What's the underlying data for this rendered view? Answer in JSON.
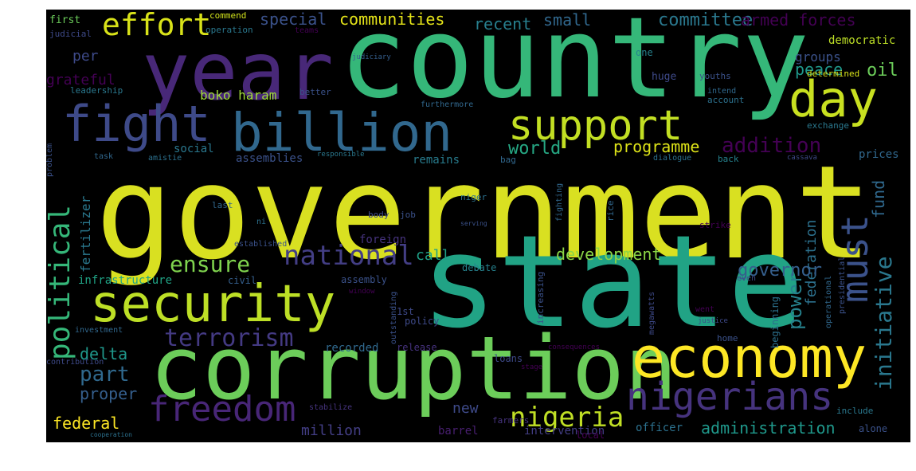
{
  "words": [
    {
      "text": "government",
      "color": "#d9e021"
    },
    {
      "text": "country",
      "color": "#35b779"
    },
    {
      "text": "state",
      "color": "#21a385"
    },
    {
      "text": "corruption",
      "color": "#6ccd5a"
    },
    {
      "text": "year",
      "color": "#482878"
    },
    {
      "text": "billion",
      "color": "#31688e"
    },
    {
      "text": "fight",
      "color": "#3e4a89"
    },
    {
      "text": "security",
      "color": "#bddf26"
    },
    {
      "text": "economy",
      "color": "#fde725"
    },
    {
      "text": "support",
      "color": "#c2df23"
    },
    {
      "text": "day",
      "color": "#c8e020"
    },
    {
      "text": "nigerians",
      "color": "#46337e"
    },
    {
      "text": "freedom",
      "color": "#482677"
    },
    {
      "text": "nigeria",
      "color": "#c0df25"
    },
    {
      "text": "effort",
      "color": "#d8e219"
    },
    {
      "text": "must",
      "color": "#3b528b"
    },
    {
      "text": "national",
      "color": "#433e85"
    },
    {
      "text": "terrorism",
      "color": "#443a83"
    },
    {
      "text": "ensure",
      "color": "#7fd34e"
    },
    {
      "text": "political",
      "color": "#35b779"
    },
    {
      "text": "power",
      "color": "#26828e"
    },
    {
      "text": "initiative",
      "color": "#2a788e"
    },
    {
      "text": "part",
      "color": "#30698e"
    },
    {
      "text": "addition",
      "color": "#440154"
    },
    {
      "text": "programme",
      "color": "#dde318"
    },
    {
      "text": "world",
      "color": "#26a884"
    },
    {
      "text": "federation",
      "color": "#2c718e"
    },
    {
      "text": "governor",
      "color": "#355f8d"
    },
    {
      "text": "development",
      "color": "#8bd646"
    },
    {
      "text": "communities",
      "color": "#e5e419"
    },
    {
      "text": "special",
      "color": "#3b528b"
    },
    {
      "text": "committee",
      "color": "#2a788e"
    },
    {
      "text": "armed forces",
      "color": "#440154"
    },
    {
      "text": "small",
      "color": "#31688e"
    },
    {
      "text": "recent",
      "color": "#277f8e"
    },
    {
      "text": "peace",
      "color": "#1f988b"
    },
    {
      "text": "oil",
      "color": "#6ccd5a"
    },
    {
      "text": "democratic",
      "color": "#bddf26"
    },
    {
      "text": "groups",
      "color": "#3b528b"
    },
    {
      "text": "grateful",
      "color": "#440154"
    },
    {
      "text": "per",
      "color": "#3e4a89"
    },
    {
      "text": "boko haram",
      "color": "#a0da39"
    },
    {
      "text": "administration",
      "color": "#1f988b"
    },
    {
      "text": "fund",
      "color": "#30698e"
    },
    {
      "text": "call",
      "color": "#1fa187"
    },
    {
      "text": "delta",
      "color": "#1f988b"
    },
    {
      "text": "fertilizer",
      "color": "#2a788e"
    },
    {
      "text": "proper",
      "color": "#355f8d"
    },
    {
      "text": "federal",
      "color": "#fde725"
    },
    {
      "text": "new",
      "color": "#3e4a89"
    },
    {
      "text": "million",
      "color": "#433e85"
    },
    {
      "text": "infrastructure",
      "color": "#20a486"
    },
    {
      "text": "assemblies",
      "color": "#3b528b"
    },
    {
      "text": "remains",
      "color": "#287c8e"
    },
    {
      "text": "social",
      "color": "#2a788e"
    },
    {
      "text": "prices",
      "color": "#31688e"
    },
    {
      "text": "officer",
      "color": "#2c718e"
    },
    {
      "text": "intervention",
      "color": "#433e85"
    },
    {
      "text": "barrel",
      "color": "#481f70"
    },
    {
      "text": "recorded",
      "color": "#30698e"
    },
    {
      "text": "release",
      "color": "#46327e"
    },
    {
      "text": "debate",
      "color": "#26828e"
    },
    {
      "text": "assembly",
      "color": "#3b528b"
    },
    {
      "text": "civil",
      "color": "#355f8d"
    },
    {
      "text": "investment",
      "color": "#31688e"
    },
    {
      "text": "contribution",
      "color": "#3e4a89"
    },
    {
      "text": "loans",
      "color": "#3e4a89"
    },
    {
      "text": "include",
      "color": "#2a788e"
    },
    {
      "text": "alone",
      "color": "#3b528b"
    },
    {
      "text": "local",
      "color": "#440154"
    },
    {
      "text": "farmers",
      "color": "#46337e"
    },
    {
      "text": "first",
      "color": "#6ccd5a"
    },
    {
      "text": "judicial",
      "color": "#3e4a89"
    },
    {
      "text": "commend",
      "color": "#d0e11c"
    },
    {
      "text": "operation",
      "color": "#2a788e"
    },
    {
      "text": "teams",
      "color": "#440154"
    },
    {
      "text": "judiciary",
      "color": "#355f8d"
    },
    {
      "text": "one",
      "color": "#26828e"
    },
    {
      "text": "huge",
      "color": "#3e4a89"
    },
    {
      "text": "youths",
      "color": "#3b528b"
    },
    {
      "text": "determined",
      "color": "#d8e219"
    },
    {
      "text": "intend",
      "color": "#30698e"
    },
    {
      "text": "account",
      "color": "#2c718e"
    },
    {
      "text": "leadership",
      "color": "#2a788e"
    },
    {
      "text": "better",
      "color": "#3b528b"
    },
    {
      "text": "furthermore",
      "color": "#31688e"
    },
    {
      "text": "exchange",
      "color": "#2a788e"
    },
    {
      "text": "problem",
      "color": "#3b528b"
    },
    {
      "text": "task",
      "color": "#31688e"
    },
    {
      "text": "amistie",
      "color": "#2c718e"
    },
    {
      "text": "responsible",
      "color": "#2a788e"
    },
    {
      "text": "bag",
      "color": "#31688e"
    },
    {
      "text": "dialogue",
      "color": "#2c718e"
    },
    {
      "text": "back",
      "color": "#26828e"
    },
    {
      "text": "cassava",
      "color": "#3e4a89"
    },
    {
      "text": "last",
      "color": "#31688e"
    },
    {
      "text": "niger",
      "color": "#2c718e"
    },
    {
      "text": "body",
      "color": "#3e4a89"
    },
    {
      "text": "job",
      "color": "#3b528b"
    },
    {
      "text": "foreign",
      "color": "#46337e"
    },
    {
      "text": "fighting",
      "color": "#31688e"
    },
    {
      "text": "strike",
      "color": "#440154"
    },
    {
      "text": "rice",
      "color": "#31688e"
    },
    {
      "text": "established",
      "color": "#3b528b"
    },
    {
      "text": "even",
      "color": "#3e4a89"
    },
    {
      "text": "window",
      "color": "#440154"
    },
    {
      "text": "operational",
      "color": "#31688e"
    },
    {
      "text": "presidential",
      "color": "#3b528b"
    },
    {
      "text": "beginning",
      "color": "#2c718e"
    },
    {
      "text": "1st",
      "color": "#3e4a89"
    },
    {
      "text": "outstanding",
      "color": "#3b528b"
    },
    {
      "text": "policy",
      "color": "#3e4a89"
    },
    {
      "text": "increasing",
      "color": "#3b528b"
    },
    {
      "text": "megawatts",
      "color": "#3e4a89"
    },
    {
      "text": "went",
      "color": "#440154"
    },
    {
      "text": "home",
      "color": "#3b528b"
    },
    {
      "text": "justice",
      "color": "#3e4a89"
    },
    {
      "text": "consequences",
      "color": "#440154"
    },
    {
      "text": "stabilize",
      "color": "#46337e"
    },
    {
      "text": "stage",
      "color": "#440154"
    },
    {
      "text": "cooperation",
      "color": "#2c718e"
    },
    {
      "text": "serving",
      "color": "#3b528b"
    },
    {
      "text": "ni",
      "color": "#2c718e"
    }
  ]
}
